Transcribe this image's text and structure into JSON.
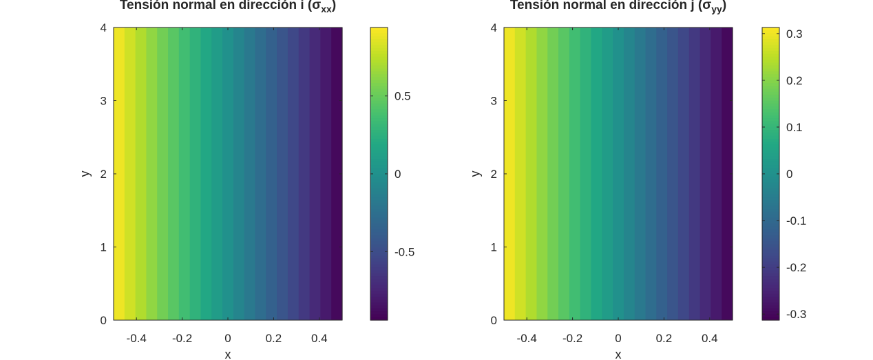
{
  "chart_data": [
    {
      "type": "heatmap",
      "title": "Tensión normal en dirección i (σ",
      "title_sub": "xx",
      "title_end": ")",
      "xlabel": "x",
      "ylabel": "y",
      "xlim": [
        -0.5,
        0.5
      ],
      "ylim": [
        0,
        4
      ],
      "xticks": [
        -0.4,
        -0.2,
        0,
        0.2,
        0.4
      ],
      "xtick_labels": [
        "-0.4",
        "-0.2",
        "0",
        "0.2",
        "0.4"
      ],
      "yticks": [
        0,
        1,
        2,
        3,
        4
      ],
      "ytick_labels": [
        "0",
        "1",
        "2",
        "3",
        "4"
      ],
      "field": "linear in x, constant in y",
      "value_at_xmin": 0.94,
      "value_at_xmax": -0.94,
      "colormap": "viridis",
      "clim": [
        -0.94,
        0.94
      ],
      "colorbar_ticks": [
        -0.5,
        0,
        0.5
      ],
      "colorbar_tick_labels": [
        "-0.5",
        "0",
        "0.5"
      ]
    },
    {
      "type": "heatmap",
      "title": "Tensión normal en dirección j (σ",
      "title_sub": "yy",
      "title_end": ")",
      "xlabel": "x",
      "ylabel": "y",
      "xlim": [
        -0.5,
        0.5
      ],
      "ylim": [
        0,
        4
      ],
      "xticks": [
        -0.4,
        -0.2,
        0,
        0.2,
        0.4
      ],
      "xtick_labels": [
        "-0.4",
        "-0.2",
        "0",
        "0.2",
        "0.4"
      ],
      "yticks": [
        0,
        1,
        2,
        3,
        4
      ],
      "ytick_labels": [
        "0",
        "1",
        "2",
        "3",
        "4"
      ],
      "field": "linear in x, constant in y",
      "value_at_xmin": 0.313,
      "value_at_xmax": -0.313,
      "colormap": "viridis",
      "clim": [
        -0.313,
        0.313
      ],
      "colorbar_ticks": [
        -0.3,
        -0.2,
        -0.1,
        0,
        0.1,
        0.2,
        0.3
      ],
      "colorbar_tick_labels": [
        "-0.3",
        "-0.2",
        "-0.1",
        "0",
        "0.1",
        "0.2",
        "0.3"
      ]
    }
  ]
}
